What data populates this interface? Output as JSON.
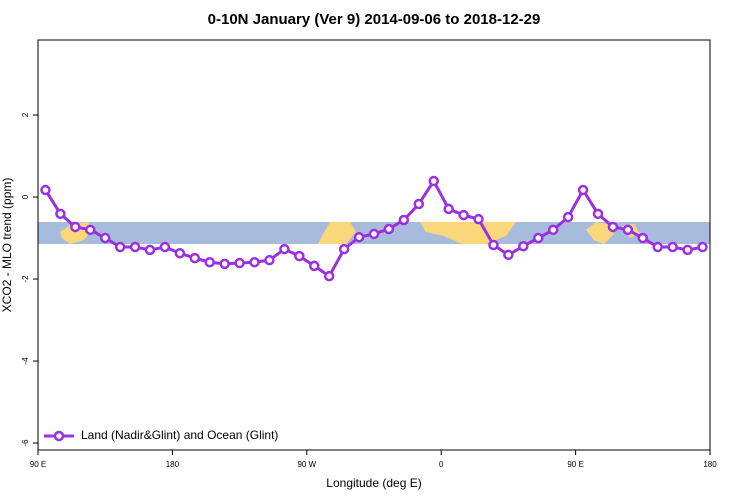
{
  "chart_data": {
    "type": "line",
    "title": "0-10N January (Ver 9)   2014-09-06 to 2018-12-29",
    "xlabel": "Longitude (deg E)",
    "ylabel": "XCO2 - MLO trend (ppm)",
    "x": [
      95,
      105,
      115,
      125,
      135,
      145,
      155,
      165,
      175,
      185,
      195,
      205,
      215,
      225,
      235,
      245,
      255,
      265,
      275,
      285,
      295,
      305,
      315,
      325,
      335,
      345,
      355,
      365,
      375,
      385,
      395,
      405,
      415,
      425,
      435,
      445,
      455,
      465,
      475,
      485,
      495,
      505,
      515,
      525,
      535
    ],
    "series": [
      {
        "name": "Land (Nadir&Glint) and Ocean (Glint)",
        "color": "#9b30e0",
        "values": [
          0.17,
          -0.41,
          -0.73,
          -0.8,
          -1.0,
          -1.22,
          -1.22,
          -1.29,
          -1.22,
          -1.37,
          -1.49,
          -1.59,
          -1.63,
          -1.61,
          -1.59,
          -1.54,
          -1.27,
          -1.44,
          -1.68,
          -1.93,
          -1.27,
          -0.98,
          -0.9,
          -0.78,
          -0.56,
          -0.17,
          0.39,
          -0.29,
          -0.44,
          -0.54,
          -1.17,
          -1.41,
          -1.2,
          -1.0,
          -0.8,
          -0.49,
          0.17,
          -0.41,
          -0.73,
          -0.8,
          -1.0,
          -1.22,
          -1.22,
          -1.29,
          -1.22
        ]
      }
    ],
    "xlim": [
      90,
      540
    ],
    "xticks": [
      {
        "value": 90,
        "label": "90 E"
      },
      {
        "value": 180,
        "label": "180"
      },
      {
        "value": 270,
        "label": "90 W"
      },
      {
        "value": 360,
        "label": "0"
      },
      {
        "value": 450,
        "label": "90 E"
      },
      {
        "value": 540,
        "label": "180"
      }
    ],
    "ylim": [
      -6.17,
      3.83
    ],
    "yticks": [
      2,
      0,
      -2,
      -4,
      -6
    ],
    "legend": "bottomleft"
  }
}
